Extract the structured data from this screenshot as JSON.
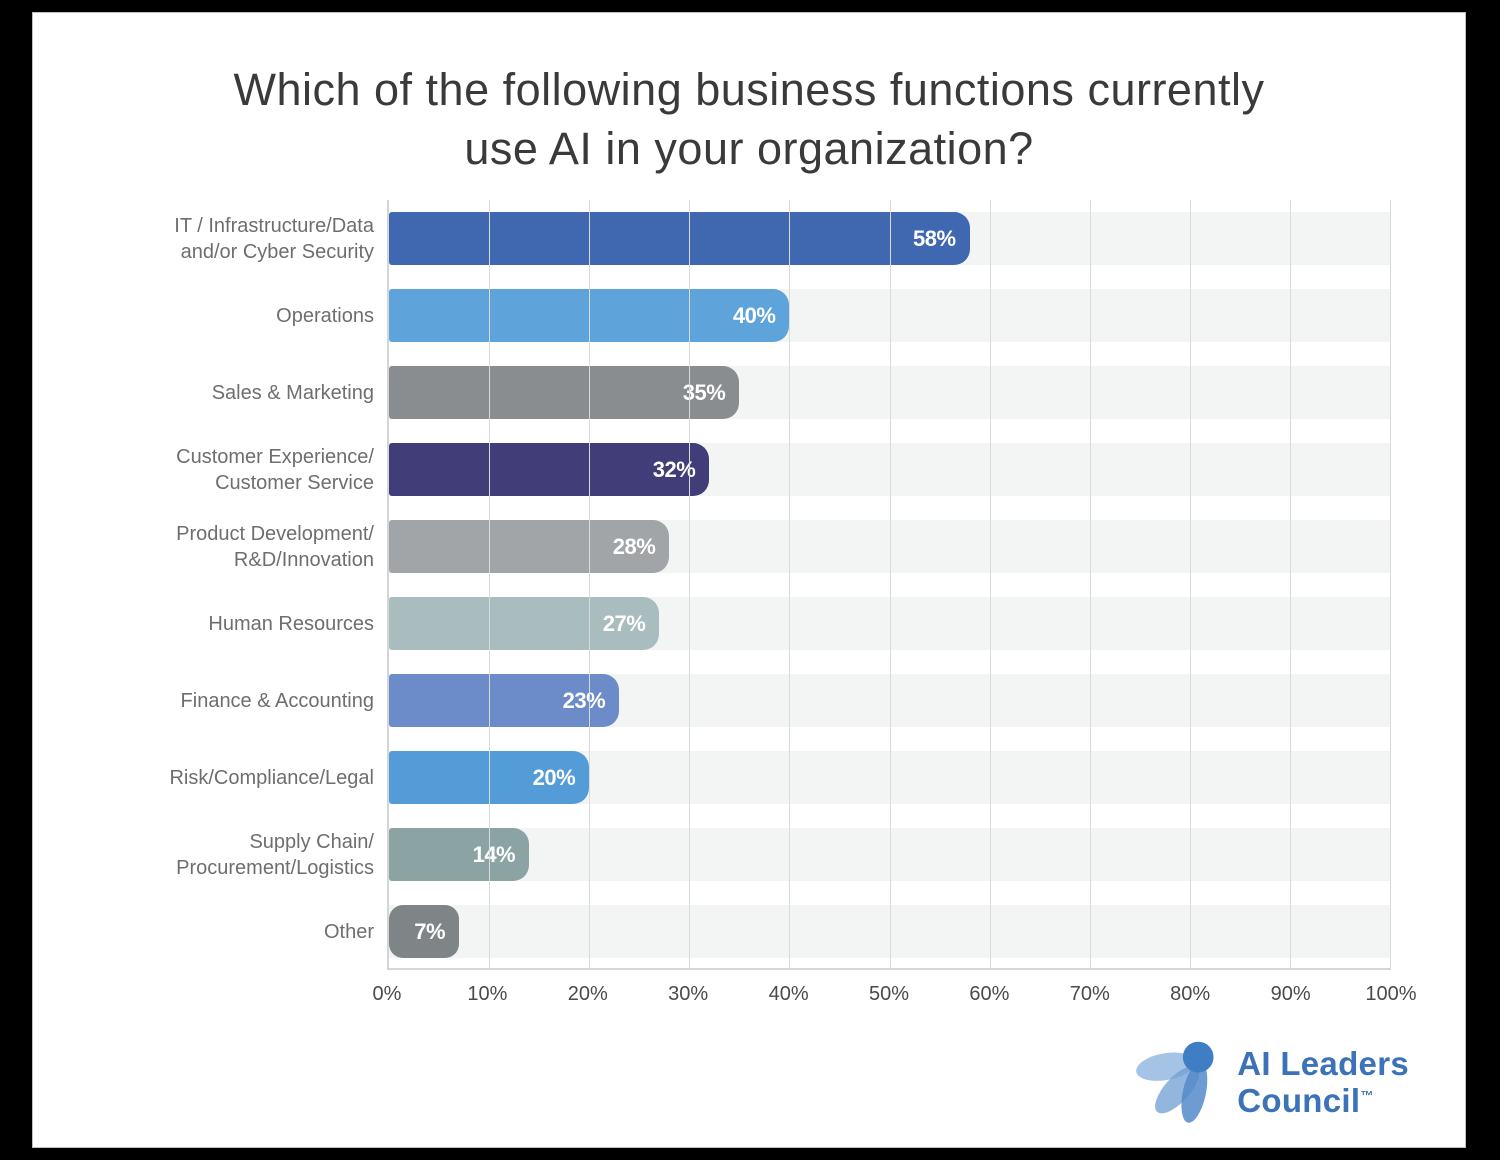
{
  "title": "Which of the following business functions currently\nuse AI in your organization?",
  "chart_data": {
    "type": "bar",
    "orientation": "horizontal",
    "title": "Which of the following business functions currently use AI in your organization?",
    "categories": [
      "IT / Infrastructure/Data\nand/or Cyber Security",
      "Operations",
      "Sales & Marketing",
      "Customer Experience/\nCustomer Service",
      "Product Development/\nR&D/Innovation",
      "Human Resources",
      "Finance & Accounting",
      "Risk/Compliance/Legal",
      "Supply Chain/\nProcurement/Logistics",
      "Other"
    ],
    "values": [
      58,
      40,
      35,
      32,
      28,
      27,
      23,
      20,
      14,
      7
    ],
    "value_labels": [
      "58%",
      "40%",
      "35%",
      "32%",
      "28%",
      "27%",
      "23%",
      "20%",
      "14%",
      "7%"
    ],
    "bar_colors": [
      "#3f68b0",
      "#5ea4da",
      "#8a8d90",
      "#403d78",
      "#a2a5a8",
      "#a9bdbf",
      "#6c8cc9",
      "#549cd8",
      "#8ba4a3",
      "#7f8487"
    ],
    "x_ticks": [
      "0%",
      "10%",
      "20%",
      "30%",
      "40%",
      "50%",
      "60%",
      "70%",
      "80%",
      "90%",
      "100%"
    ],
    "xlim": [
      0,
      100
    ],
    "grid": "vertical",
    "row_band_color": "#f3f4f4",
    "legend": "none"
  },
  "branding": {
    "line1": "AI Leaders",
    "line2": "Council",
    "trademark": "™",
    "color": "#3b72b8"
  }
}
